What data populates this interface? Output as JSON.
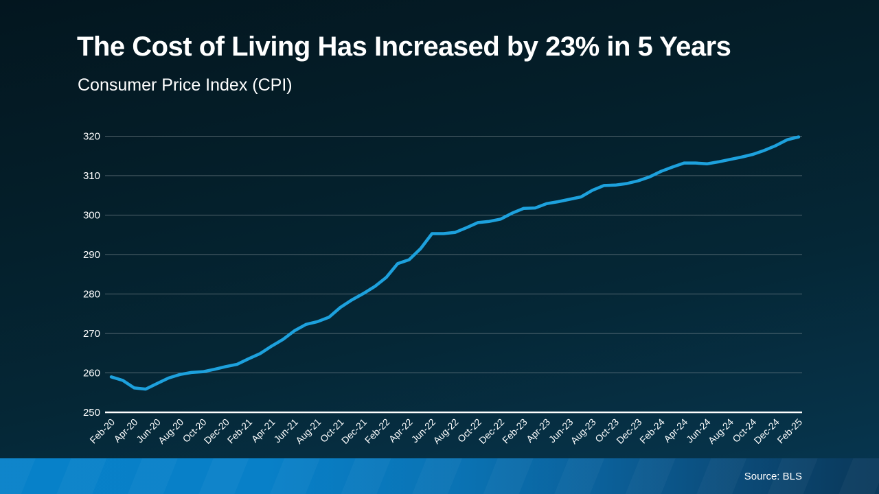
{
  "header": {
    "title": "The Cost of Living Has Increased by 23% in 5 Years",
    "subtitle": "Consumer Price Index (CPI)"
  },
  "footer": {
    "source": "Source: BLS"
  },
  "colors": {
    "background_top": "#041e29",
    "background_bottom": "#073753",
    "line": "#1da1dd",
    "gridline": "#97a1a6",
    "axis_line": "#ffffff",
    "text": "#ffffff",
    "footer_left": "#0781c9",
    "footer_right": "#0a3a5c"
  },
  "chart_data": {
    "type": "line",
    "title": "Consumer Price Index (CPI)",
    "xlabel": "",
    "ylabel": "",
    "ylim": [
      250,
      320
    ],
    "y_ticks": [
      250,
      260,
      270,
      280,
      290,
      300,
      310,
      320
    ],
    "grid": "horizontal",
    "legend": "none",
    "x_tick_labels": [
      "Feb-20",
      "Apr-20",
      "Jun-20",
      "Aug-20",
      "Oct-20",
      "Dec-20",
      "Feb-21",
      "Apr-21",
      "Jun-21",
      "Aug-21",
      "Oct-21",
      "Dec-21",
      "Feb-22",
      "Apr-22",
      "Jun-22",
      "Aug-22",
      "Oct-22",
      "Dec-22",
      "Feb-23",
      "Apr-23",
      "Jun-23",
      "Aug-23",
      "Oct-23",
      "Dec-23",
      "Feb-24",
      "Apr-24",
      "Jun-24",
      "Aug-24",
      "Oct-24",
      "Dec-24",
      "Feb-25"
    ],
    "series": [
      {
        "name": "CPI",
        "x": [
          "Feb-20",
          "Mar-20",
          "Apr-20",
          "May-20",
          "Jun-20",
          "Jul-20",
          "Aug-20",
          "Sep-20",
          "Oct-20",
          "Nov-20",
          "Dec-20",
          "Jan-21",
          "Feb-21",
          "Mar-21",
          "Apr-21",
          "May-21",
          "Jun-21",
          "Jul-21",
          "Aug-21",
          "Sep-21",
          "Oct-21",
          "Nov-21",
          "Dec-21",
          "Jan-22",
          "Feb-22",
          "Mar-22",
          "Apr-22",
          "May-22",
          "Jun-22",
          "Jul-22",
          "Aug-22",
          "Sep-22",
          "Oct-22",
          "Nov-22",
          "Dec-22",
          "Jan-23",
          "Feb-23",
          "Mar-23",
          "Apr-23",
          "May-23",
          "Jun-23",
          "Jul-23",
          "Aug-23",
          "Sep-23",
          "Oct-23",
          "Nov-23",
          "Dec-23",
          "Jan-24",
          "Feb-24",
          "Mar-24",
          "Apr-24",
          "May-24",
          "Jun-24",
          "Jul-24",
          "Aug-24",
          "Sep-24",
          "Oct-24",
          "Nov-24",
          "Dec-24",
          "Jan-25",
          "Feb-25"
        ],
        "values": [
          259.0,
          258.1,
          256.2,
          255.9,
          257.3,
          258.7,
          259.6,
          260.1,
          260.3,
          260.9,
          261.6,
          262.2,
          263.6,
          264.9,
          266.8,
          268.5,
          270.7,
          272.3,
          273.0,
          274.1,
          276.6,
          278.5,
          280.1,
          281.9,
          284.2,
          287.7,
          288.7,
          291.5,
          295.3,
          295.3,
          295.6,
          296.8,
          298.1,
          298.4,
          299.0,
          300.5,
          301.7,
          301.8,
          302.9,
          303.4,
          304.0,
          304.6,
          306.3,
          307.5,
          307.6,
          308.0,
          308.7,
          309.7,
          311.1,
          312.2,
          313.2,
          313.2,
          313.0,
          313.5,
          314.1,
          314.7,
          315.4,
          316.4,
          317.6,
          319.1,
          319.8
        ]
      }
    ]
  }
}
